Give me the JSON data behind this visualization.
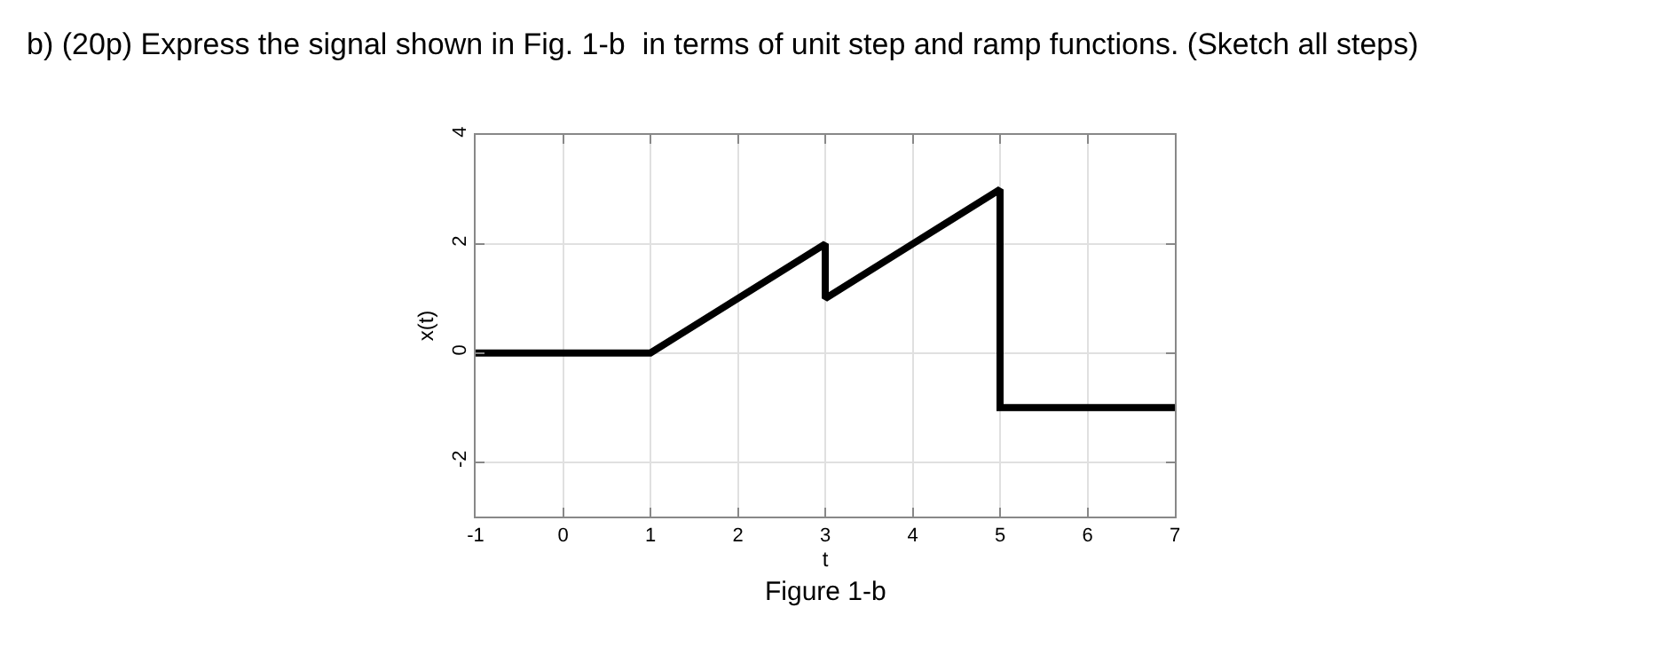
{
  "chart_data": {
    "type": "line",
    "title": "b) (20p) Express the signal shown in Fig. 1-b  in terms of unit step and ramp functions. (Sketch all steps)",
    "xlabel": "t",
    "ylabel": "x(t)",
    "x": [
      -1,
      1,
      3,
      3,
      5,
      5,
      7
    ],
    "series": [
      {
        "color": "#000000",
        "values": [
          0,
          0,
          2,
          1,
          3,
          -1,
          -1
        ]
      }
    ],
    "xlim": [
      -1,
      7
    ],
    "ylim": [
      -3,
      4
    ],
    "xticks": [
      -1,
      0,
      1,
      2,
      3,
      4,
      5,
      6,
      7
    ],
    "yticks": [
      -2,
      0,
      2,
      4
    ],
    "grid": true,
    "marker": "none",
    "line_style": "solid",
    "annotations": [
      "Figure 1-b"
    ]
  }
}
